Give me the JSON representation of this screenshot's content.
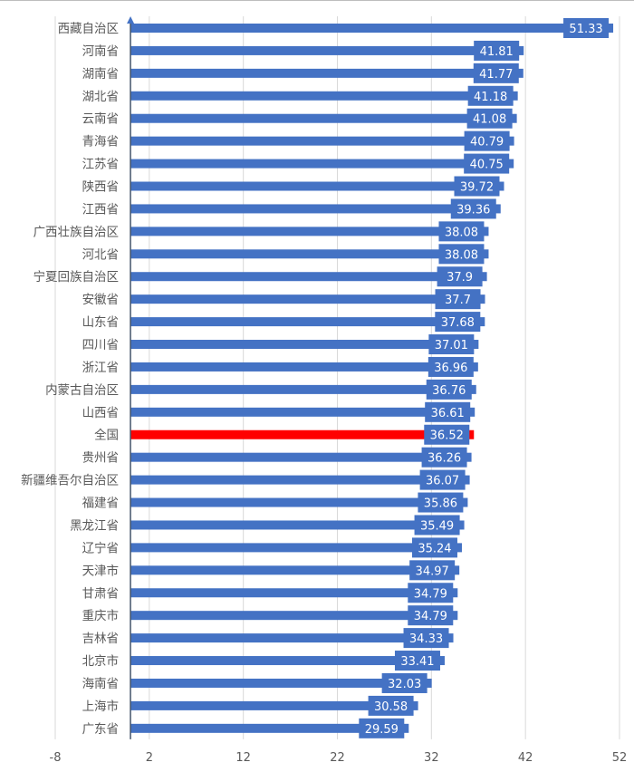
{
  "chart_data": {
    "type": "bar",
    "orientation": "horizontal",
    "title": "",
    "xlabel": "",
    "ylabel": "",
    "xlim": [
      -8,
      52
    ],
    "xticks": [
      "-8",
      "2",
      "12",
      "22",
      "32",
      "42",
      "52"
    ],
    "grid": true,
    "legend": "none",
    "colors": {
      "default": "#4472C4",
      "highlight": "#FF0000",
      "label_text": "#FFFFFF",
      "axis_text": "#595959",
      "grid": "#D9D9D9"
    },
    "highlight_category": "全国",
    "categories": [
      "西藏自治区",
      "河南省",
      "湖南省",
      "湖北省",
      "云南省",
      "青海省",
      "江苏省",
      "陕西省",
      "江西省",
      "广西壮族自治区",
      "河北省",
      "宁夏回族自治区",
      "安徽省",
      "山东省",
      "四川省",
      "浙江省",
      "内蒙古自治区",
      "山西省",
      "全国",
      "贵州省",
      "新疆维吾尔自治区",
      "福建省",
      "黑龙江省",
      "辽宁省",
      "天津市",
      "甘肃省",
      "重庆市",
      "吉林省",
      "北京市",
      "海南省",
      "上海市",
      "广东省"
    ],
    "values": [
      51.33,
      41.81,
      41.77,
      41.18,
      41.08,
      40.79,
      40.75,
      39.72,
      39.36,
      38.08,
      38.08,
      37.9,
      37.7,
      37.68,
      37.01,
      36.96,
      36.76,
      36.61,
      36.52,
      36.26,
      36.07,
      35.86,
      35.49,
      35.24,
      34.97,
      34.79,
      34.79,
      34.33,
      33.41,
      32.03,
      30.58,
      29.59
    ]
  }
}
